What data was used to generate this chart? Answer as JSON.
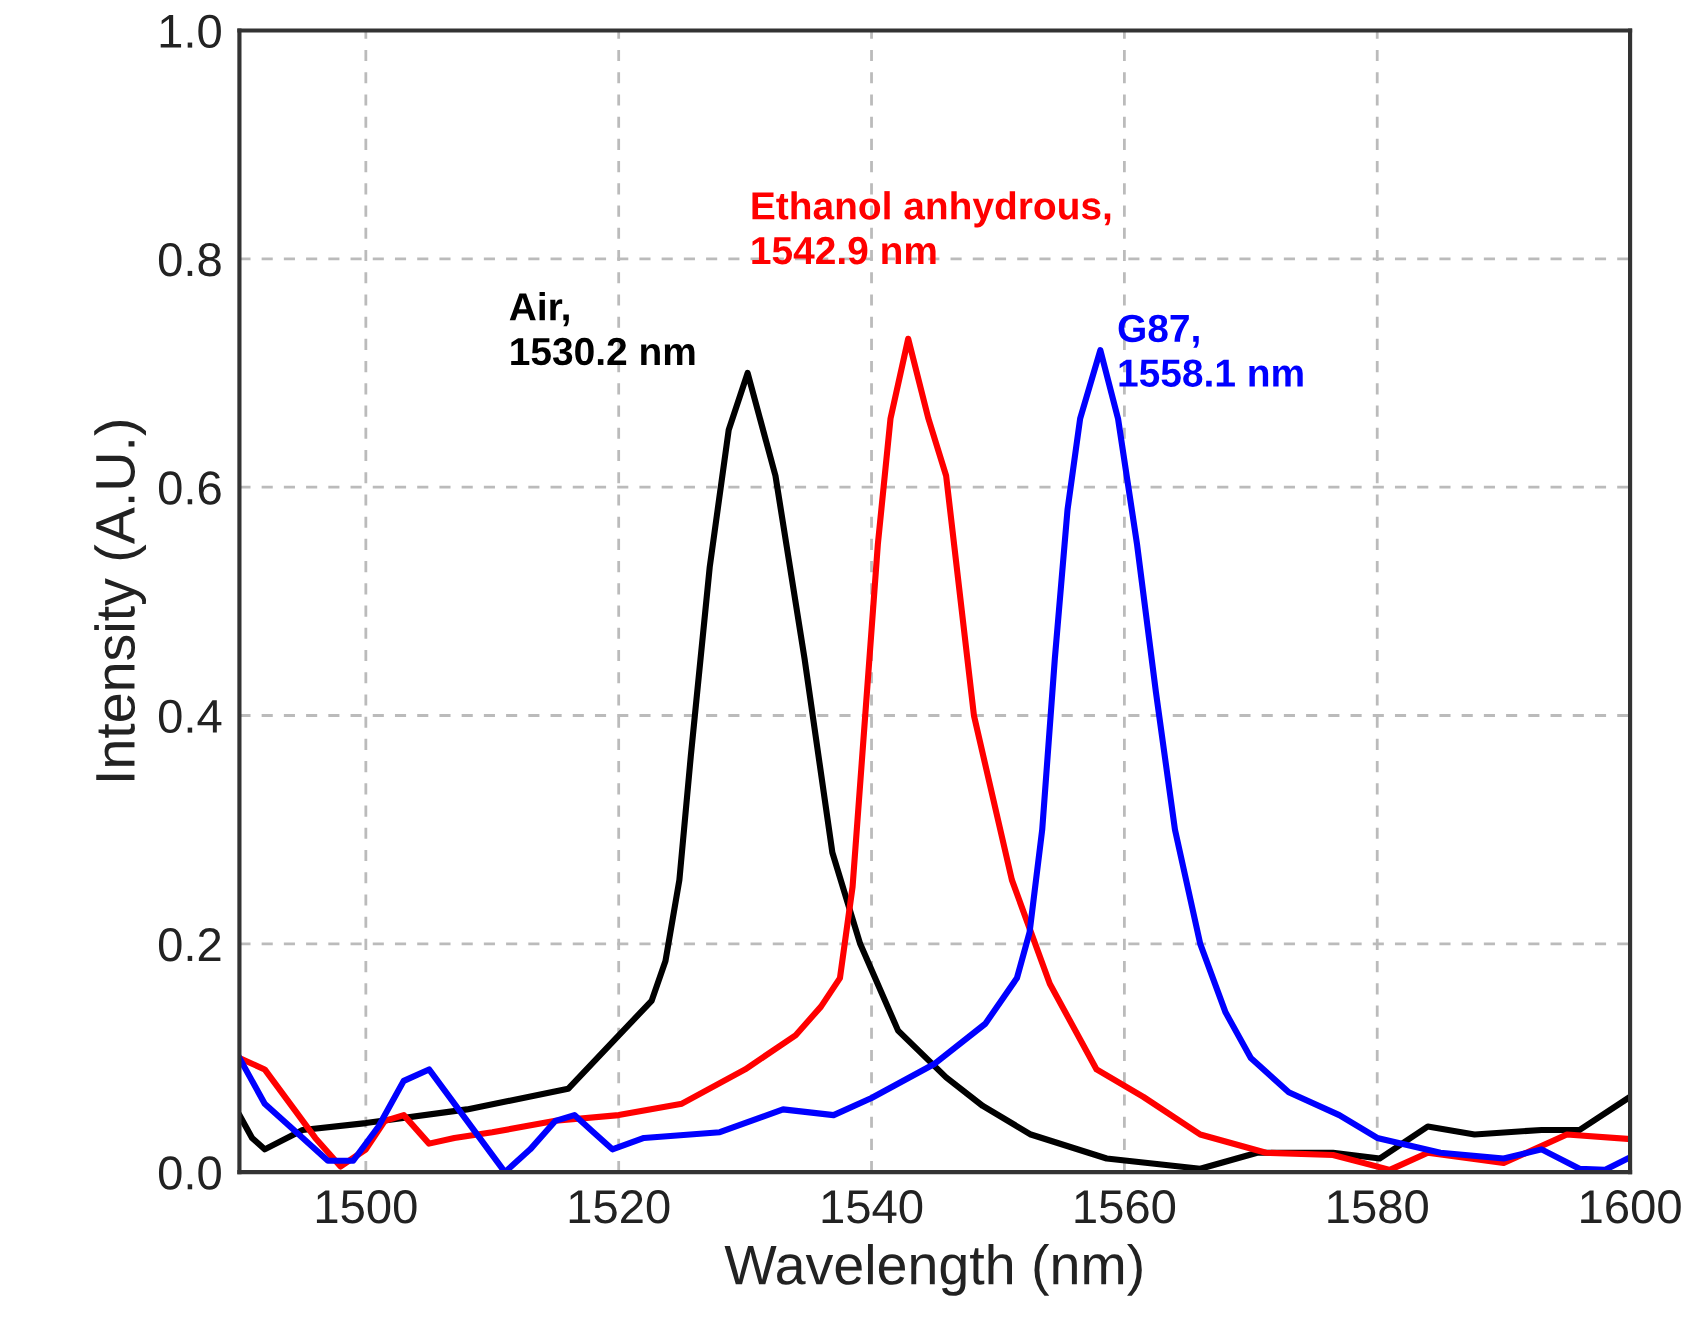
{
  "chart_data": {
    "type": "line",
    "xlabel": "Wavelength (nm)",
    "ylabel": "Intensity (A.U.)",
    "xlim": [
      1490,
      1600
    ],
    "xticks": [
      1500,
      1520,
      1540,
      1560,
      1580,
      1600
    ],
    "ylim": [
      0,
      1.0
    ],
    "yticks": [
      {
        "value": 0,
        "label": "0.0"
      },
      {
        "value": 0.2,
        "label": "0.2"
      },
      {
        "value": 0.4,
        "label": "0.4"
      },
      {
        "value": 0.6,
        "label": "0.6"
      },
      {
        "value": 0.8,
        "label": "0.8"
      },
      {
        "value": 1.0,
        "label": "1.0"
      }
    ],
    "grid": true,
    "marker": "none",
    "line_style": "solid",
    "series": [
      {
        "color": "#000000",
        "x": [
          1490,
          1491,
          1492,
          1495,
          1500,
          1508,
          1516,
          1519.5,
          1522.6,
          1523.7,
          1524.8,
          1525.7,
          1527.2,
          1528.7,
          1530.2,
          1532.4,
          1534.7,
          1536.9,
          1539.1,
          1542.1,
          1545.9,
          1548.8,
          1552.6,
          1558.6,
          1566,
          1570.5,
          1576.5,
          1580.2,
          1584,
          1587.7,
          1593,
          1596,
          1600
        ],
        "values": [
          0.05,
          0.03,
          0.02,
          0.037,
          0.043,
          0.055,
          0.073,
          0.114,
          0.15,
          0.185,
          0.256,
          0.364,
          0.53,
          0.65,
          0.7,
          0.61,
          0.45,
          0.28,
          0.2,
          0.124,
          0.083,
          0.058,
          0.033,
          0.012,
          0.003,
          0.017,
          0.017,
          0.012,
          0.04,
          0.033,
          0.037,
          0.037,
          0.066
        ]
      },
      {
        "color": "#ff0000",
        "x": [
          1490,
          1492,
          1494,
          1496,
          1498,
          1500,
          1501.5,
          1503,
          1505,
          1507,
          1510,
          1515,
          1520,
          1525,
          1530,
          1534,
          1536,
          1537.5,
          1538.5,
          1539.5,
          1540.5,
          1541.5,
          1542.9,
          1544.5,
          1545.9,
          1548.1,
          1551.1,
          1554.1,
          1557.8,
          1561.5,
          1566,
          1571.2,
          1576.5,
          1581,
          1584,
          1590,
          1595,
          1600
        ],
        "values": [
          0.1,
          0.09,
          0.06,
          0.03,
          0.005,
          0.02,
          0.045,
          0.05,
          0.025,
          0.03,
          0.035,
          0.045,
          0.05,
          0.06,
          0.09,
          0.12,
          0.145,
          0.17,
          0.25,
          0.4,
          0.55,
          0.66,
          0.73,
          0.66,
          0.61,
          0.4,
          0.256,
          0.165,
          0.09,
          0.066,
          0.033,
          0.017,
          0.015,
          0.002,
          0.017,
          0.008,
          0.033,
          0.029
        ]
      },
      {
        "color": "#0000ff",
        "x": [
          1490,
          1492,
          1494,
          1497,
          1499,
          1501,
          1503,
          1505,
          1507,
          1509,
          1511,
          1513,
          1515,
          1516.5,
          1518,
          1519.5,
          1522,
          1528,
          1533,
          1537,
          1540,
          1545,
          1549,
          1551.5,
          1552.5,
          1553.5,
          1554.5,
          1555.5,
          1556.5,
          1558.1,
          1559.5,
          1561,
          1562.5,
          1564,
          1566,
          1568,
          1570,
          1573,
          1577,
          1580,
          1585,
          1590,
          1593,
          1596,
          1598,
          1600
        ],
        "values": [
          0.1,
          0.06,
          0.04,
          0.01,
          0.01,
          0.04,
          0.08,
          0.09,
          0.06,
          0.03,
          0.0,
          0.02,
          0.045,
          0.05,
          0.035,
          0.02,
          0.03,
          0.035,
          0.055,
          0.05,
          0.065,
          0.095,
          0.13,
          0.17,
          0.21,
          0.3,
          0.45,
          0.58,
          0.66,
          0.72,
          0.66,
          0.55,
          0.42,
          0.3,
          0.2,
          0.14,
          0.1,
          0.07,
          0.05,
          0.03,
          0.017,
          0.012,
          0.02,
          0.003,
          0.002,
          0.013
        ]
      }
    ],
    "annotations": [
      {
        "text": "Air,\n1530.2 nm",
        "x": 1530.2,
        "y": 0.7
      },
      {
        "text": "Ethanol anhydrous,\n1542.9 nm",
        "x": 1542.9,
        "y": 0.73
      },
      {
        "text": "G87,\n1558.1 nm",
        "x": 1558.1,
        "y": 0.72
      }
    ]
  }
}
